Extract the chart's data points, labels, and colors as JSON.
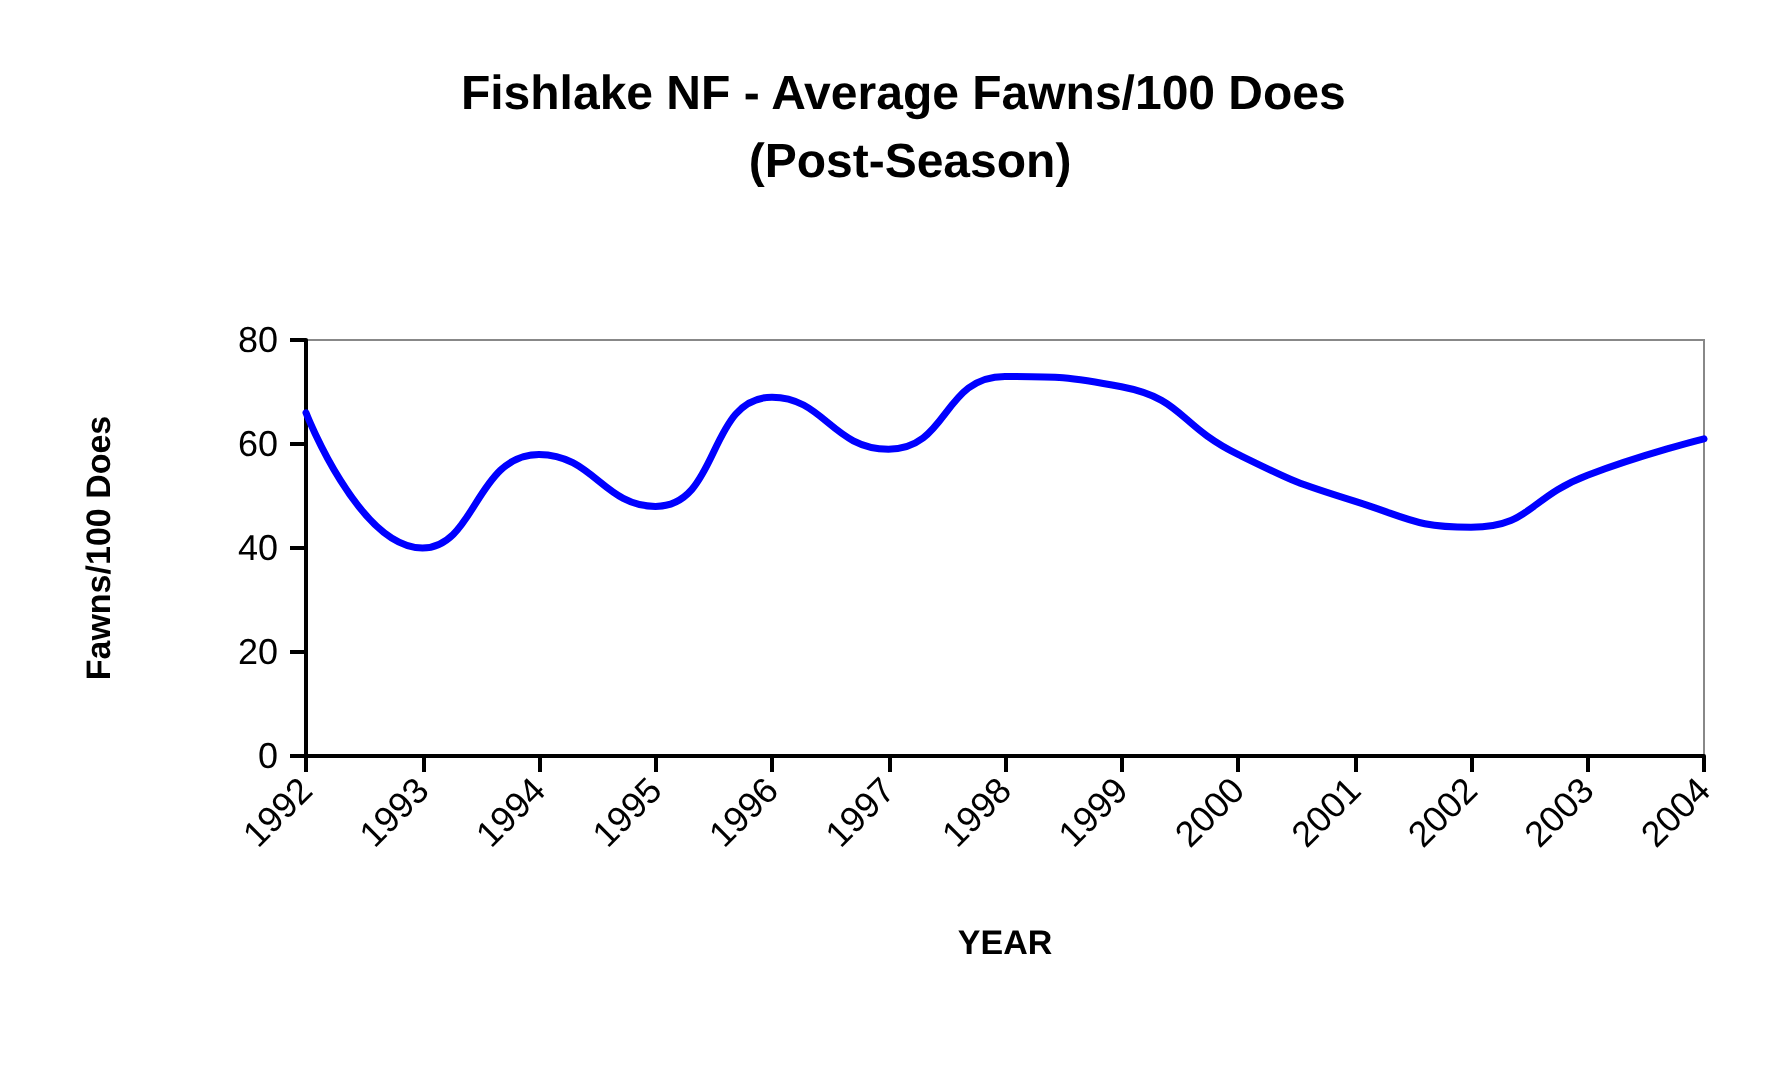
{
  "chart_data": {
    "type": "line",
    "title": "Fishlake NF - Average Fawns/100 Does (Post-Season)",
    "xlabel": "YEAR",
    "ylabel": "Fawns/100 Does",
    "categories": [
      "1992",
      "1993",
      "1994",
      "1995",
      "1996",
      "1997",
      "1998",
      "1999",
      "2000",
      "2001",
      "2002",
      "2003",
      "2004"
    ],
    "series": [
      {
        "color": "#0000ff",
        "values": [
          66,
          40,
          58,
          48,
          69,
          59,
          73,
          71,
          58,
          49,
          44,
          54,
          61
        ]
      }
    ],
    "ylim": [
      0,
      80
    ],
    "yticks": [
      0,
      20,
      40,
      60,
      80
    ],
    "grid": false,
    "marker": "none",
    "line_style": "solid"
  }
}
